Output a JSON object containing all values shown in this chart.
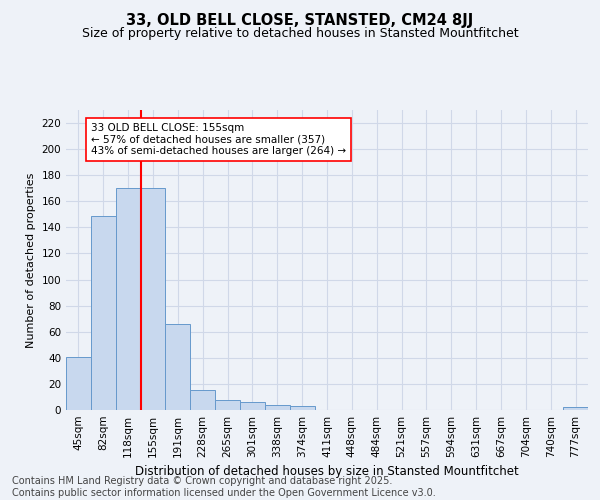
{
  "title": "33, OLD BELL CLOSE, STANSTED, CM24 8JJ",
  "subtitle": "Size of property relative to detached houses in Stansted Mountfitchet",
  "xlabel": "Distribution of detached houses by size in Stansted Mountfitchet",
  "ylabel": "Number of detached properties",
  "categories": [
    "45sqm",
    "82sqm",
    "118sqm",
    "155sqm",
    "191sqm",
    "228sqm",
    "265sqm",
    "301sqm",
    "338sqm",
    "374sqm",
    "411sqm",
    "448sqm",
    "484sqm",
    "521sqm",
    "557sqm",
    "594sqm",
    "631sqm",
    "667sqm",
    "704sqm",
    "740sqm",
    "777sqm"
  ],
  "values": [
    41,
    149,
    170,
    170,
    66,
    15,
    8,
    6,
    4,
    3,
    0,
    0,
    0,
    0,
    0,
    0,
    0,
    0,
    0,
    0,
    2
  ],
  "bar_color": "#c8d8ee",
  "bar_edge_color": "#6699cc",
  "vline_color": "red",
  "annotation_text": "33 OLD BELL CLOSE: 155sqm\n← 57% of detached houses are smaller (357)\n43% of semi-detached houses are larger (264) →",
  "annotation_box_color": "white",
  "annotation_box_edge_color": "red",
  "ylim": [
    0,
    230
  ],
  "yticks": [
    0,
    20,
    40,
    60,
    80,
    100,
    120,
    140,
    160,
    180,
    200,
    220
  ],
  "background_color": "#eef2f8",
  "grid_color": "#d0d8e8",
  "footer": "Contains HM Land Registry data © Crown copyright and database right 2025.\nContains public sector information licensed under the Open Government Licence v3.0.",
  "title_fontsize": 10.5,
  "subtitle_fontsize": 9,
  "ylabel_fontsize": 8,
  "xlabel_fontsize": 8.5,
  "tick_fontsize": 7.5,
  "annotation_fontsize": 7.5,
  "footer_fontsize": 7
}
